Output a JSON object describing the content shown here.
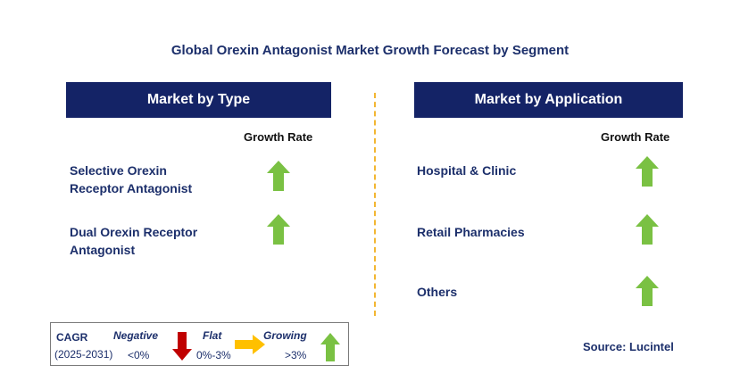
{
  "title": "Global Orexin Antagonist Market Growth Forecast by Segment",
  "left_panel": {
    "header": "Market by Type",
    "growth_label": "Growth Rate",
    "items": [
      {
        "line1": "Selective Orexin",
        "line2": "Receptor Antagonist",
        "trend": "growing"
      },
      {
        "line1": "Dual Orexin Receptor",
        "line2": "Antagonist",
        "trend": "growing"
      }
    ]
  },
  "right_panel": {
    "header": "Market by Application",
    "growth_label": "Growth Rate",
    "items": [
      {
        "label": "Hospital & Clinic",
        "trend": "growing"
      },
      {
        "label": "Retail Pharmacies",
        "trend": "growing"
      },
      {
        "label": "Others",
        "trend": "growing"
      }
    ]
  },
  "legend": {
    "cagr": "CAGR",
    "period": "(2025-2031)",
    "negative": {
      "label": "Negative",
      "range": "<0%",
      "color": "#c00000",
      "icon": "down-arrow-icon"
    },
    "flat": {
      "label": "Flat",
      "range": "0%-3%",
      "color": "#ffc000",
      "icon": "right-arrow-icon"
    },
    "growing": {
      "label": "Growing",
      "range": ">3%",
      "color": "#7ac143",
      "icon": "up-arrow-icon"
    }
  },
  "source": "Source: Lucintel",
  "colors": {
    "header_bg": "#142366",
    "divider": "#f2b632",
    "up_arrow": "#7ac143"
  }
}
